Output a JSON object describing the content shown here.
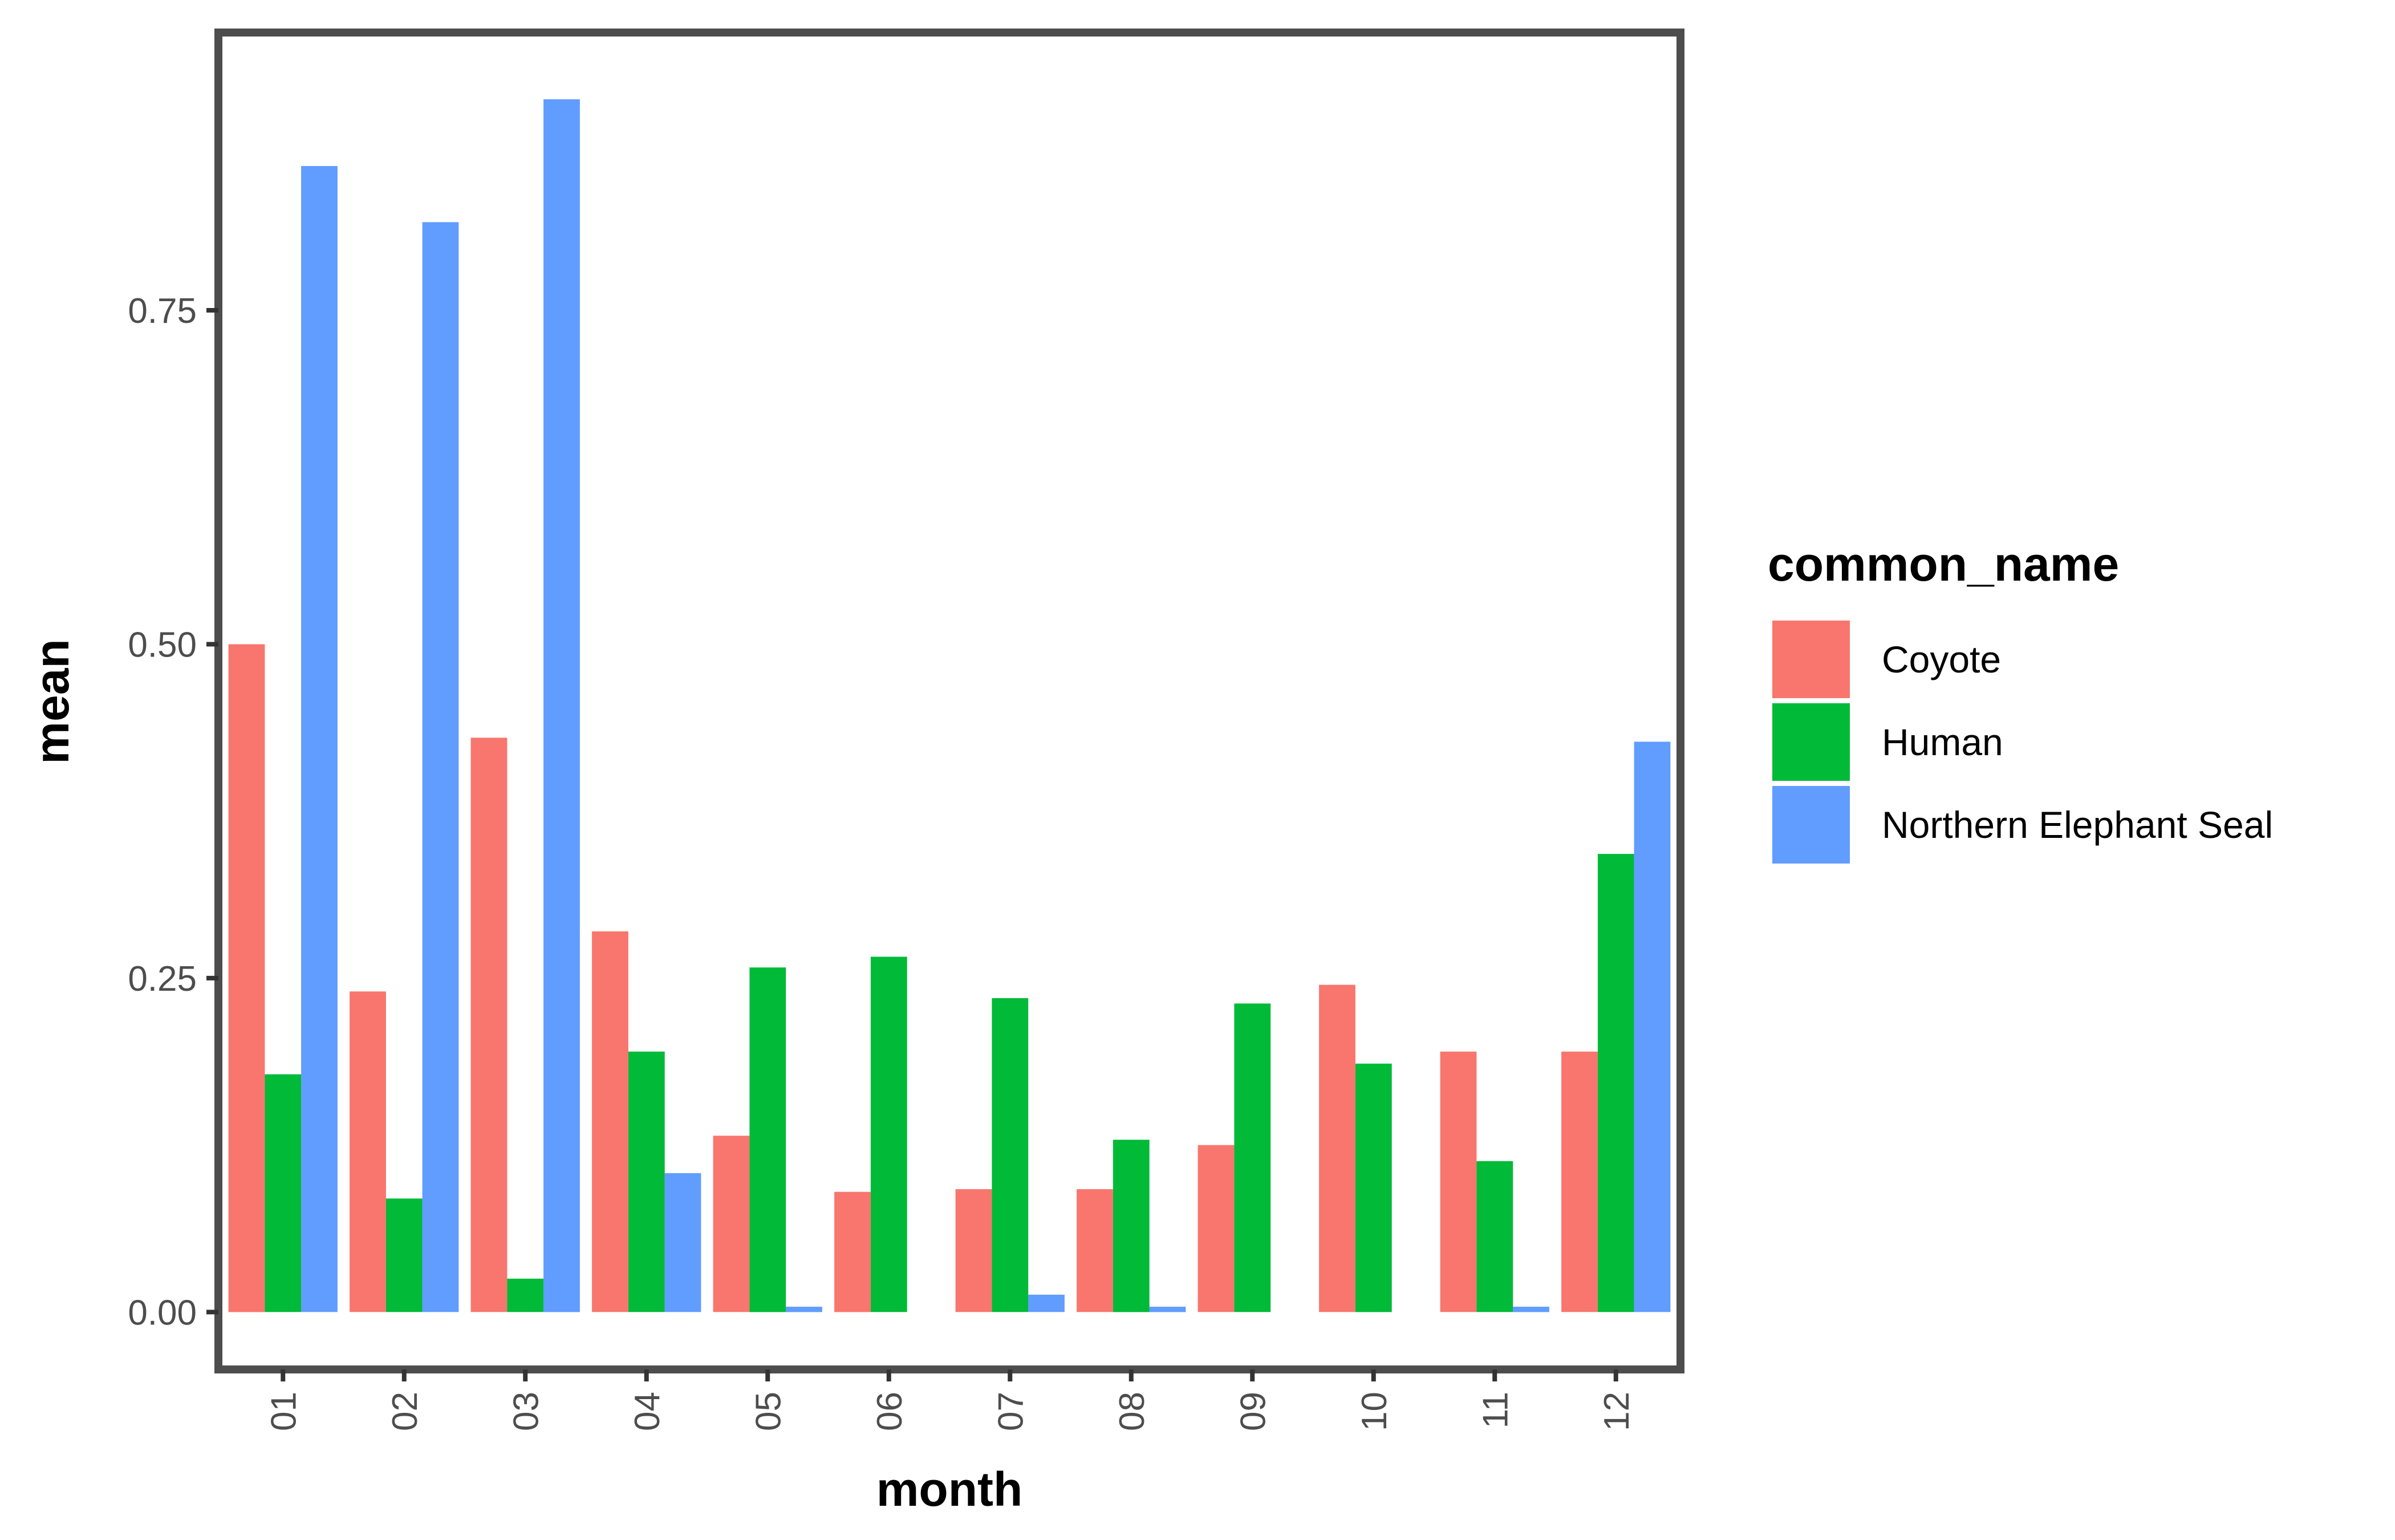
{
  "chart_data": {
    "type": "bar",
    "xlabel": "month",
    "ylabel": "mean",
    "ylim": [
      -0.04,
      0.955
    ],
    "yticks": [
      0.0,
      0.25,
      0.5,
      0.75
    ],
    "ytick_labels": [
      "0.00",
      "0.25",
      "0.50",
      "0.75"
    ],
    "categories": [
      "01",
      "02",
      "03",
      "04",
      "05",
      "06",
      "07",
      "08",
      "09",
      "10",
      "11",
      "12"
    ],
    "grid": false,
    "legend": {
      "title": "common_name",
      "position": "right"
    },
    "series": [
      {
        "name": "Coyote",
        "color": "#F8766D",
        "values": [
          0.5,
          0.24,
          0.43,
          0.285,
          0.132,
          0.09,
          0.092,
          0.092,
          0.125,
          0.245,
          0.195,
          0.195
        ]
      },
      {
        "name": "Human",
        "color": "#00BA38",
        "values": [
          0.178,
          0.085,
          0.025,
          0.195,
          0.258,
          0.266,
          0.235,
          0.129,
          0.231,
          0.186,
          0.113,
          0.343
        ]
      },
      {
        "name": "Northern Elephant Seal",
        "color": "#619CFF",
        "values": [
          0.858,
          0.816,
          0.908,
          0.104,
          0.004,
          0.0,
          0.013,
          0.004,
          0.0,
          0.0,
          0.004,
          0.427
        ]
      }
    ]
  }
}
